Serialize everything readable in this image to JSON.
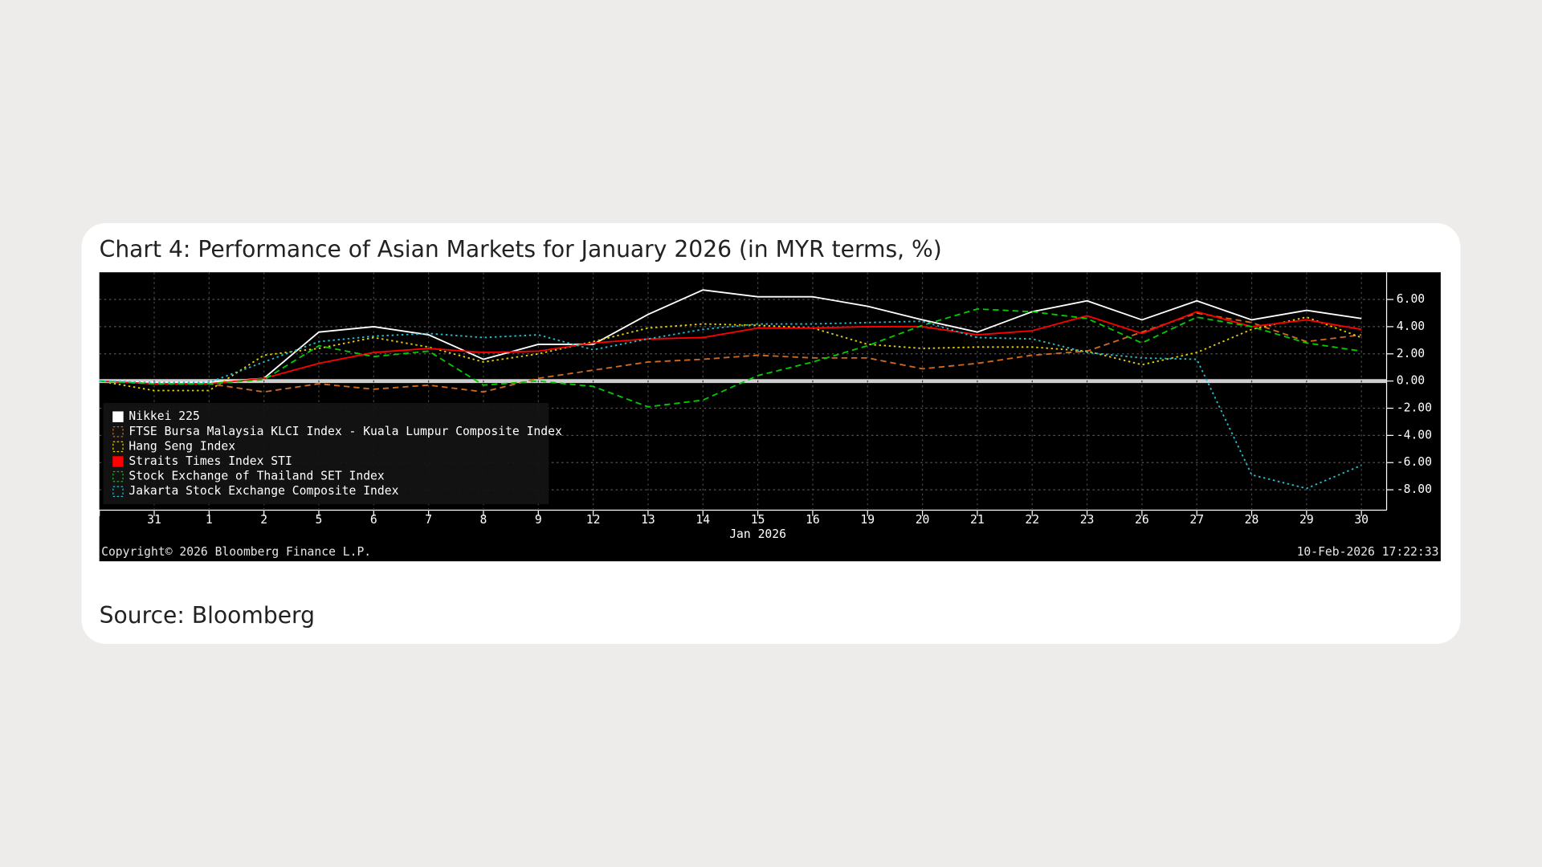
{
  "chart_data": {
    "type": "line",
    "title": "Chart 4: Performance of Asian Markets for January 2026 (in MYR terms, %)",
    "source": "Source: Bloomberg",
    "copyright": "Copyright© 2026 Bloomberg Finance L.P.",
    "timestamp": "10-Feb-2026 17:22:33",
    "x_label": "Jan 2026",
    "categories": [
      null,
      "31",
      "1",
      "2",
      "5",
      "6",
      "7",
      "8",
      "9",
      "12",
      "13",
      "14",
      "15",
      "16",
      "19",
      "20",
      "21",
      "22",
      "23",
      "26",
      "27",
      "28",
      "29",
      "30"
    ],
    "ylim": [
      -9.5,
      8
    ],
    "yticks": [
      {
        "value": 6,
        "label": "6.00"
      },
      {
        "value": 4,
        "label": "4.00"
      },
      {
        "value": 2,
        "label": "2.00"
      },
      {
        "value": 0,
        "label": "0.00"
      },
      {
        "value": -2,
        "label": "-2.00"
      },
      {
        "value": -4,
        "label": "-4.00"
      },
      {
        "value": -6,
        "label": "-6.00"
      },
      {
        "value": -8,
        "label": "-8.00"
      }
    ],
    "grid": true,
    "legend": "lower-left",
    "series": [
      {
        "name": "Nikkei 225",
        "color": "#ffffff",
        "dash": "solid",
        "values": [
          0,
          -0.1,
          -0.1,
          0.2,
          3.6,
          4.0,
          3.4,
          1.6,
          2.7,
          2.7,
          4.9,
          6.7,
          6.2,
          6.2,
          5.5,
          4.5,
          3.6,
          5.1,
          5.9,
          4.5,
          5.9,
          4.5,
          5.2,
          4.6
        ]
      },
      {
        "name": "FTSE Bursa Malaysia KLCI Index - Kuala Lumpur Composite Index",
        "color": "#d2691e",
        "dash": "dashed",
        "values": [
          0,
          -0.2,
          -0.2,
          -0.8,
          -0.2,
          -0.6,
          -0.3,
          -0.8,
          0.2,
          0.8,
          1.4,
          1.6,
          1.9,
          1.7,
          1.7,
          0.9,
          1.3,
          1.9,
          2.2,
          3.6,
          5.0,
          4.3,
          2.9,
          3.4
        ]
      },
      {
        "name": "Hang Seng Index",
        "color": "#e6d200",
        "dash": "dotted",
        "values": [
          0,
          -0.7,
          -0.7,
          1.9,
          2.4,
          3.2,
          2.5,
          1.4,
          2.0,
          2.9,
          3.9,
          4.2,
          4.1,
          3.9,
          2.7,
          2.4,
          2.5,
          2.5,
          2.2,
          1.2,
          2.1,
          3.8,
          4.7,
          3.2
        ]
      },
      {
        "name": "Straits Times Index STI",
        "color": "#ff0000",
        "dash": "solid",
        "values": [
          0,
          -0.2,
          -0.2,
          0.2,
          1.3,
          2.1,
          2.4,
          2.1,
          2.2,
          2.8,
          3.1,
          3.2,
          3.9,
          3.9,
          4.0,
          4.0,
          3.4,
          3.7,
          4.8,
          3.5,
          5.1,
          4.0,
          4.5,
          3.8
        ]
      },
      {
        "name": "Stock Exchange of Thailand SET Index",
        "color": "#00cc00",
        "dash": "dashed",
        "values": [
          0,
          -0.2,
          -0.2,
          0.1,
          2.6,
          1.8,
          2.2,
          -0.3,
          0.0,
          -0.4,
          -1.9,
          -1.4,
          0.4,
          1.4,
          2.6,
          4.1,
          5.3,
          5.1,
          4.6,
          2.8,
          4.7,
          4.0,
          2.8,
          2.2
        ]
      },
      {
        "name": "Jakarta Stock Exchange Composite Index",
        "color": "#22c0d0",
        "dash": "dotted",
        "values": [
          0,
          -0.1,
          -0.1,
          1.4,
          2.9,
          3.3,
          3.5,
          3.2,
          3.4,
          2.3,
          3.1,
          3.8,
          4.2,
          4.2,
          4.3,
          4.4,
          3.2,
          3.1,
          2.1,
          1.7,
          1.6,
          -6.9,
          -7.9,
          -6.2
        ]
      }
    ]
  }
}
